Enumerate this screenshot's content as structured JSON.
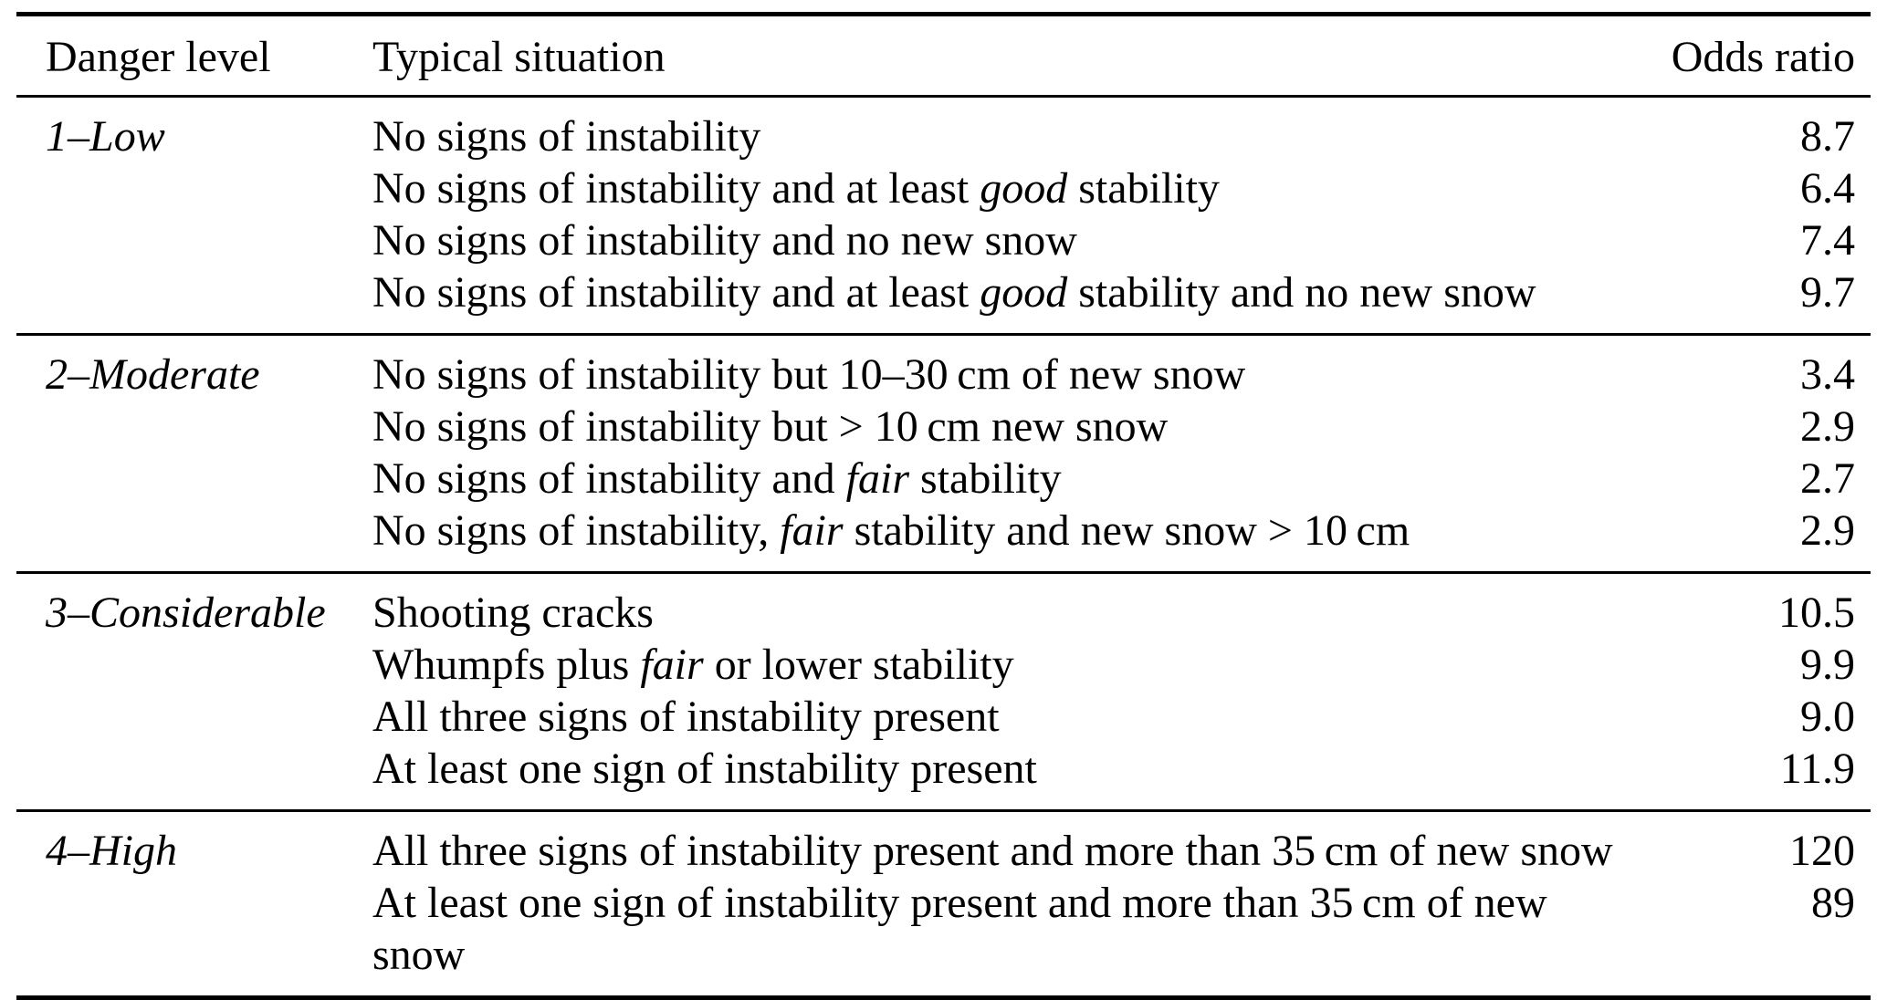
{
  "colors": {
    "background": "#ffffff",
    "text": "#000000",
    "rule": "#000000"
  },
  "table": {
    "headers": {
      "danger_level": "Danger level",
      "typical_situation": "Typical situation",
      "odds_ratio": "Odds ratio"
    },
    "sections": [
      {
        "danger_level": "1–Low",
        "rows": [
          {
            "segments": [
              {
                "text": "No signs of instability",
                "italic": false
              }
            ],
            "odds": "8.7"
          },
          {
            "segments": [
              {
                "text": "No signs of instability and at least ",
                "italic": false
              },
              {
                "text": "good",
                "italic": true
              },
              {
                "text": " stability",
                "italic": false
              }
            ],
            "odds": "6.4"
          },
          {
            "segments": [
              {
                "text": "No signs of instability and no new snow",
                "italic": false
              }
            ],
            "odds": "7.4"
          },
          {
            "segments": [
              {
                "text": "No signs of instability and at least ",
                "italic": false
              },
              {
                "text": "good",
                "italic": true
              },
              {
                "text": " stability and no new snow",
                "italic": false
              }
            ],
            "odds": "9.7"
          }
        ]
      },
      {
        "danger_level": "2–Moderate",
        "rows": [
          {
            "segments": [
              {
                "text": "No signs of instability but 10–30 cm of new snow",
                "italic": false
              }
            ],
            "odds": "3.4"
          },
          {
            "segments": [
              {
                "text": "No signs of instability but > 10 cm new snow",
                "italic": false
              }
            ],
            "odds": "2.9"
          },
          {
            "segments": [
              {
                "text": "No signs of instability and ",
                "italic": false
              },
              {
                "text": "fair",
                "italic": true
              },
              {
                "text": " stability",
                "italic": false
              }
            ],
            "odds": "2.7"
          },
          {
            "segments": [
              {
                "text": "No signs of instability, ",
                "italic": false
              },
              {
                "text": "fair",
                "italic": true
              },
              {
                "text": " stability and new snow > 10 cm",
                "italic": false
              }
            ],
            "odds": "2.9"
          }
        ]
      },
      {
        "danger_level": "3–Considerable",
        "rows": [
          {
            "segments": [
              {
                "text": "Shooting cracks",
                "italic": false
              }
            ],
            "odds": "10.5"
          },
          {
            "segments": [
              {
                "text": "Whumpfs plus ",
                "italic": false
              },
              {
                "text": "fair",
                "italic": true
              },
              {
                "text": " or lower stability",
                "italic": false
              }
            ],
            "odds": "9.9"
          },
          {
            "segments": [
              {
                "text": "All three signs of instability present",
                "italic": false
              }
            ],
            "odds": "9.0"
          },
          {
            "segments": [
              {
                "text": "At least one sign of instability present",
                "italic": false
              }
            ],
            "odds": "11.9"
          }
        ]
      },
      {
        "danger_level": "4–High",
        "rows": [
          {
            "segments": [
              {
                "text": "All three signs of instability present and more than 35 cm of new snow",
                "italic": false
              }
            ],
            "odds": "120"
          },
          {
            "segments": [
              {
                "text": "At least one sign of instability present and more than 35 cm of new snow",
                "italic": false
              }
            ],
            "odds": "89"
          }
        ]
      }
    ]
  }
}
